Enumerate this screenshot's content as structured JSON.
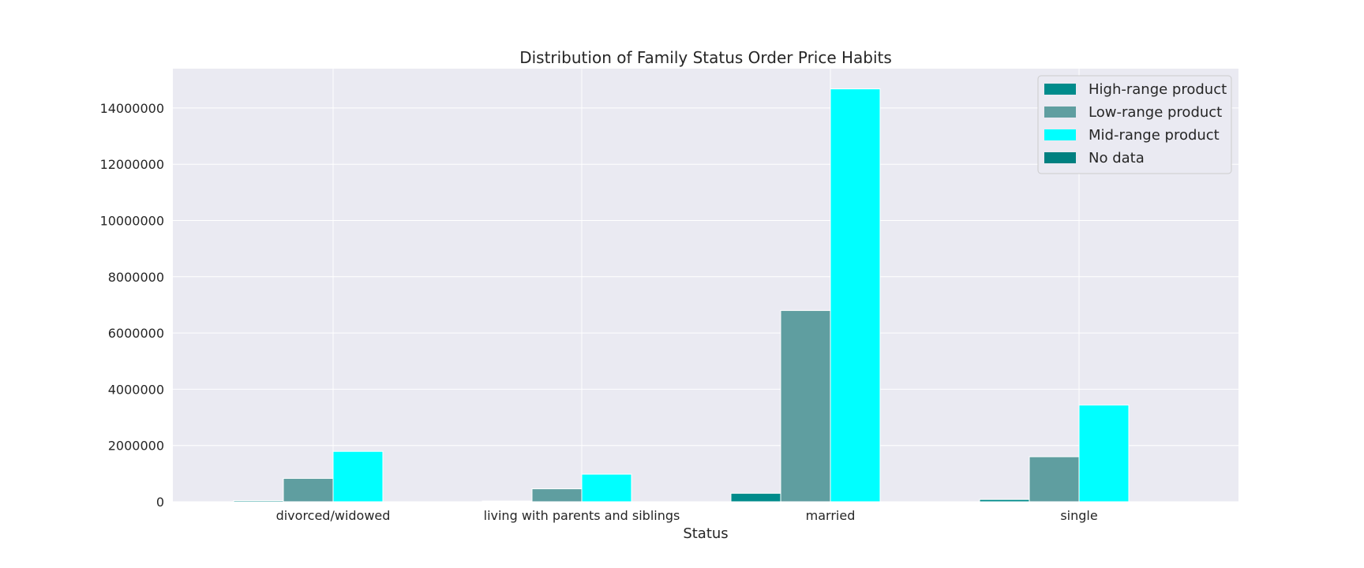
{
  "chart_data": {
    "type": "bar",
    "title": "Distribution of Family Status Order Price Habits",
    "xlabel": "Status",
    "ylabel": "",
    "categories": [
      "divorced/widowed",
      "living with parents and siblings",
      "married",
      "single"
    ],
    "series": [
      {
        "name": "High-range product",
        "color": "#008b8b",
        "values": [
          40000,
          25000,
          300000,
          80000
        ]
      },
      {
        "name": "Low-range product",
        "color": "#5f9ea0",
        "values": [
          830000,
          460000,
          6800000,
          1600000
        ]
      },
      {
        "name": "Mid-range product",
        "color": "#00ffff",
        "values": [
          1790000,
          980000,
          14680000,
          3440000
        ]
      },
      {
        "name": "No data",
        "color": "#008080",
        "values": [
          0,
          0,
          0,
          0
        ]
      }
    ],
    "ylim": [
      0,
      15400000
    ],
    "yticks": [
      0,
      2000000,
      4000000,
      6000000,
      8000000,
      10000000,
      12000000,
      14000000
    ],
    "ytick_labels": [
      "0",
      "2000000",
      "4000000",
      "6000000",
      "8000000",
      "10000000",
      "12000000",
      "14000000"
    ],
    "grid": true,
    "legend_position": "top-right",
    "colors": {
      "plot_background": "#eaeaf2",
      "grid": "#ffffff"
    }
  }
}
